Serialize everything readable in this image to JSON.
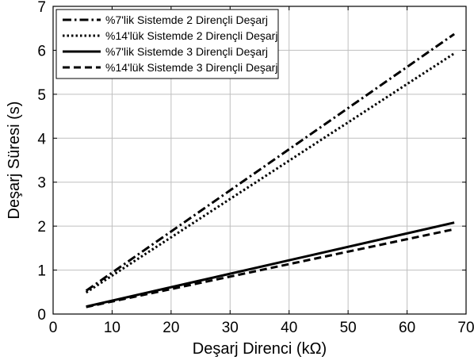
{
  "chart_data": {
    "type": "line",
    "xlabel": "Deşarj Direnci (kΩ)",
    "ylabel": "Deşarj Süresi (s)",
    "xlim": [
      0,
      70
    ],
    "ylim": [
      0,
      7
    ],
    "xticks": [
      "0",
      "10",
      "20",
      "30",
      "40",
      "50",
      "60",
      "70"
    ],
    "yticks": [
      "0",
      "1",
      "2",
      "3",
      "4",
      "5",
      "6",
      "7"
    ],
    "grid": true,
    "legend_position": "top-left",
    "series": [
      {
        "name": "%7'lik Sistemde 2 Dirençli Deşarj",
        "style": "dashdot",
        "x": [
          5.6,
          68
        ],
        "y": [
          0.53,
          6.37
        ]
      },
      {
        "name": "%14'lük Sistemde 2 Dirençli Deşarj",
        "style": "dotted",
        "x": [
          5.6,
          68
        ],
        "y": [
          0.49,
          5.93
        ]
      },
      {
        "name": "%7'lik Sistemde 3 Dirençli Deşarj",
        "style": "solid",
        "x": [
          5.6,
          68
        ],
        "y": [
          0.17,
          2.08
        ]
      },
      {
        "name": "%14'lük Sistemde 3 Dirençli Deşarj",
        "style": "dashed",
        "x": [
          5.6,
          68
        ],
        "y": [
          0.16,
          1.93
        ]
      }
    ],
    "colors": {
      "line": "#000000",
      "grid": "#bfbfbf",
      "background": "#ffffff"
    }
  }
}
